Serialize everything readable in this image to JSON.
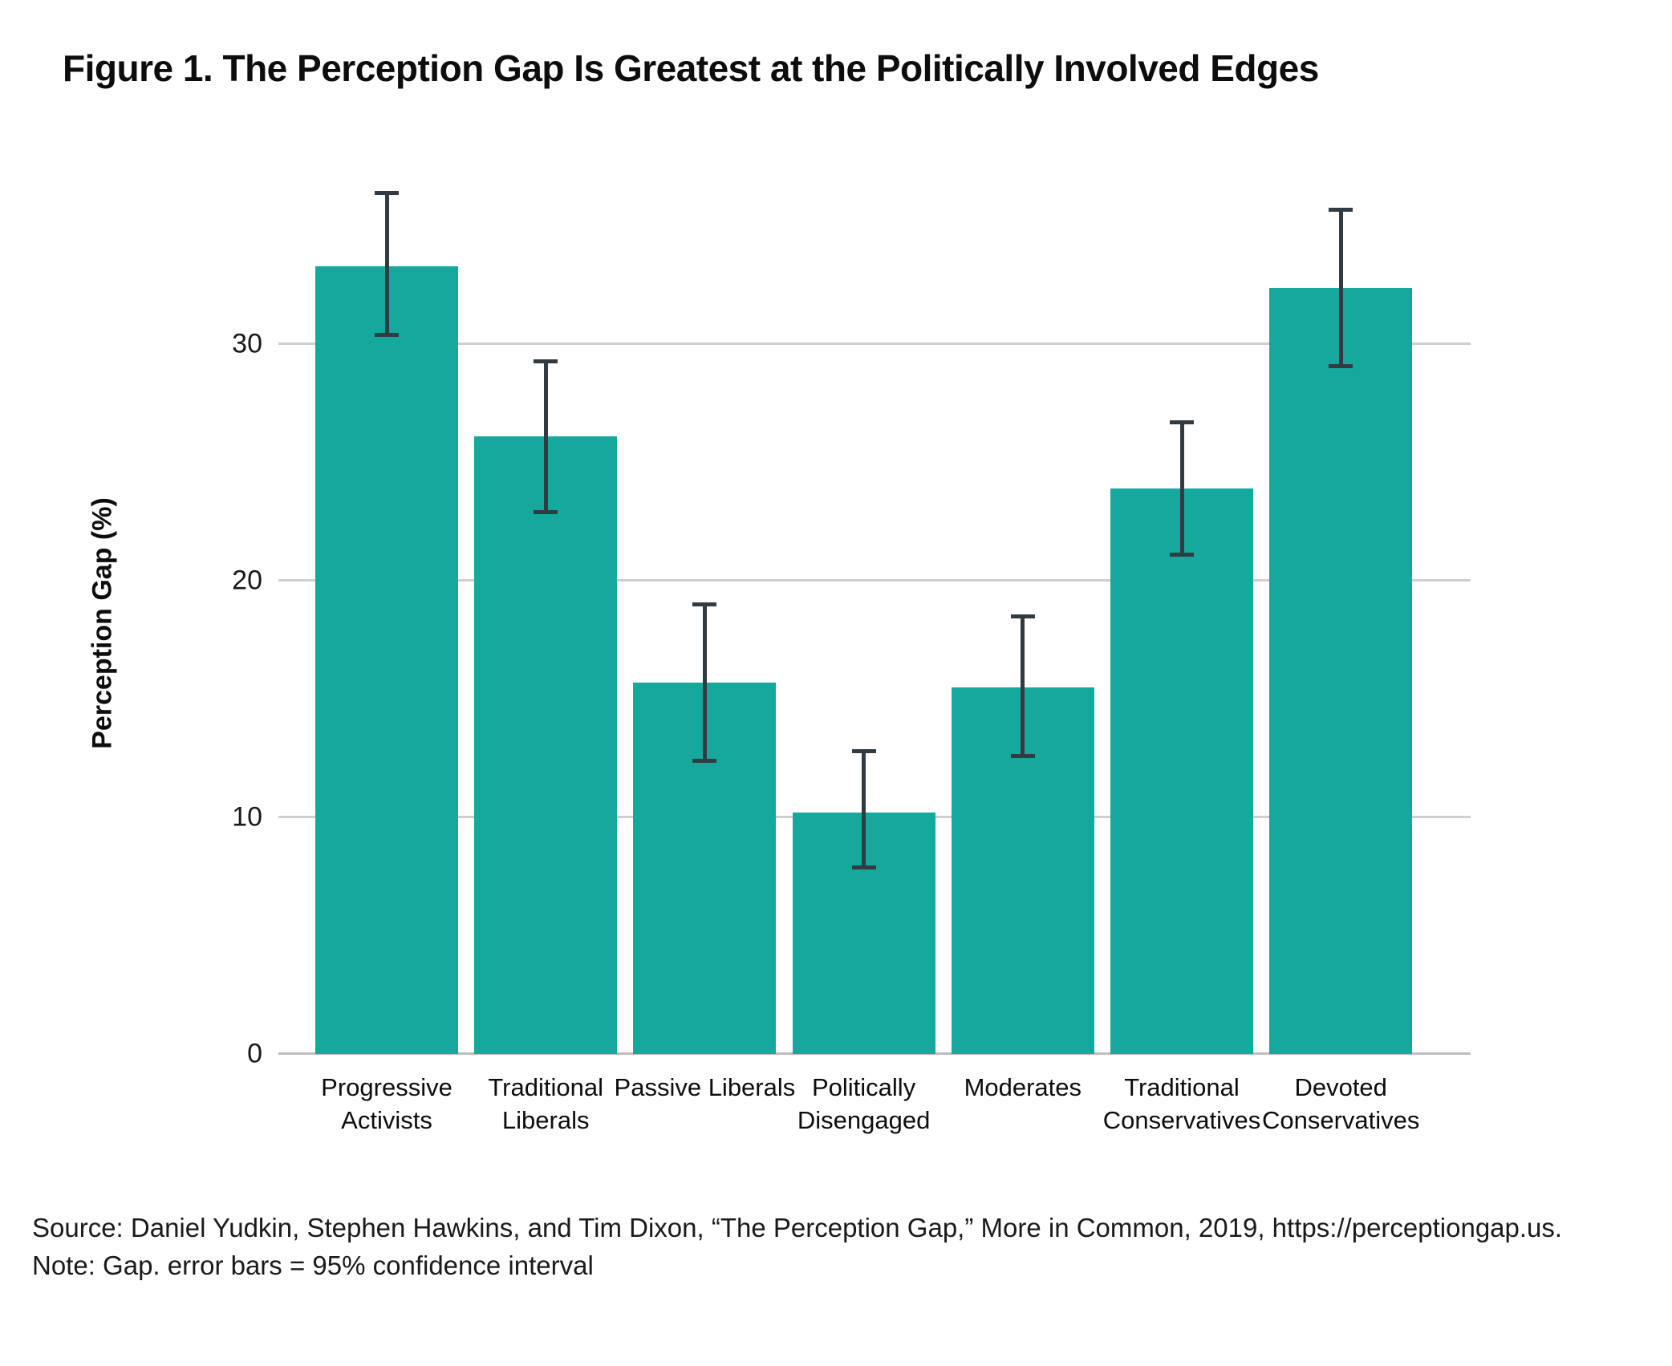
{
  "figure": {
    "title": "Figure 1. The Perception Gap Is Greatest at the Politically Involved Edges"
  },
  "chart_data": {
    "type": "bar",
    "title": "Figure 1. The Perception Gap Is Greatest at the Politically Involved Edges",
    "xlabel": "",
    "ylabel": "Perception Gap (%)",
    "yticks": [
      0,
      10,
      20,
      30
    ],
    "ylim": [
      0,
      38.8
    ],
    "grid": true,
    "legend": "none",
    "categories": [
      "Progressive Activists",
      "Traditional Liberals",
      "Passive Liberals",
      "Politically Disengaged",
      "Moderates",
      "Traditional Conservatives",
      "Devoted Conservatives"
    ],
    "values": [
      33.3,
      26.1,
      15.7,
      10.2,
      15.5,
      23.9,
      32.4
    ],
    "error_bars": {
      "meaning": "95% confidence interval",
      "lower": [
        30.4,
        22.9,
        12.4,
        7.9,
        12.6,
        21.1,
        29.1
      ],
      "upper": [
        36.4,
        29.3,
        19.0,
        12.8,
        18.5,
        26.7,
        35.7
      ]
    },
    "bar_color": "#15a89c",
    "error_bar_color": "#333b42"
  },
  "footer": {
    "source": "Source: Daniel Yudkin, Stephen Hawkins, and Tim Dixon, “The Perception Gap,” More in Common, 2019, https://perceptiongap.us.",
    "note": "Note: Gap. error bars = 95% confidence interval"
  }
}
